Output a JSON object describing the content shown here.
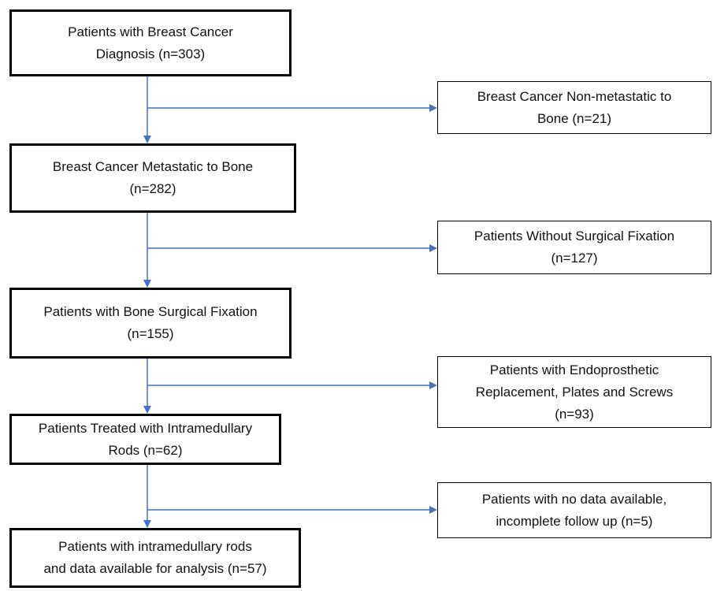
{
  "nodes": [
    {
      "lines": [
        "Patients with Breast Cancer",
        "Diagnosis (n=303)"
      ]
    },
    {
      "lines": [
        "Breast Cancer Metastatic to Bone",
        "(n=282)"
      ]
    },
    {
      "lines": [
        "Patients with Bone Surgical Fixation",
        "(n=155)"
      ]
    },
    {
      "lines": [
        "Patients Treated with Intramedullary",
        "Rods (n=62)"
      ]
    },
    {
      "lines": [
        "Patients with intramedullary rods",
        "and data available for analysis (n=57)"
      ]
    }
  ],
  "exclusions": [
    {
      "lines": [
        "Breast Cancer Non-metastatic to",
        "Bone (n=21)"
      ]
    },
    {
      "lines": [
        "Patients Without Surgical Fixation",
        "(n=127)"
      ]
    },
    {
      "lines": [
        "Patients with Endoprosthetic",
        "Replacement, Plates and Screws",
        "(n=93)"
      ]
    },
    {
      "lines": [
        "Patients with no data available,",
        "incomplete follow up (n=5)"
      ]
    }
  ]
}
